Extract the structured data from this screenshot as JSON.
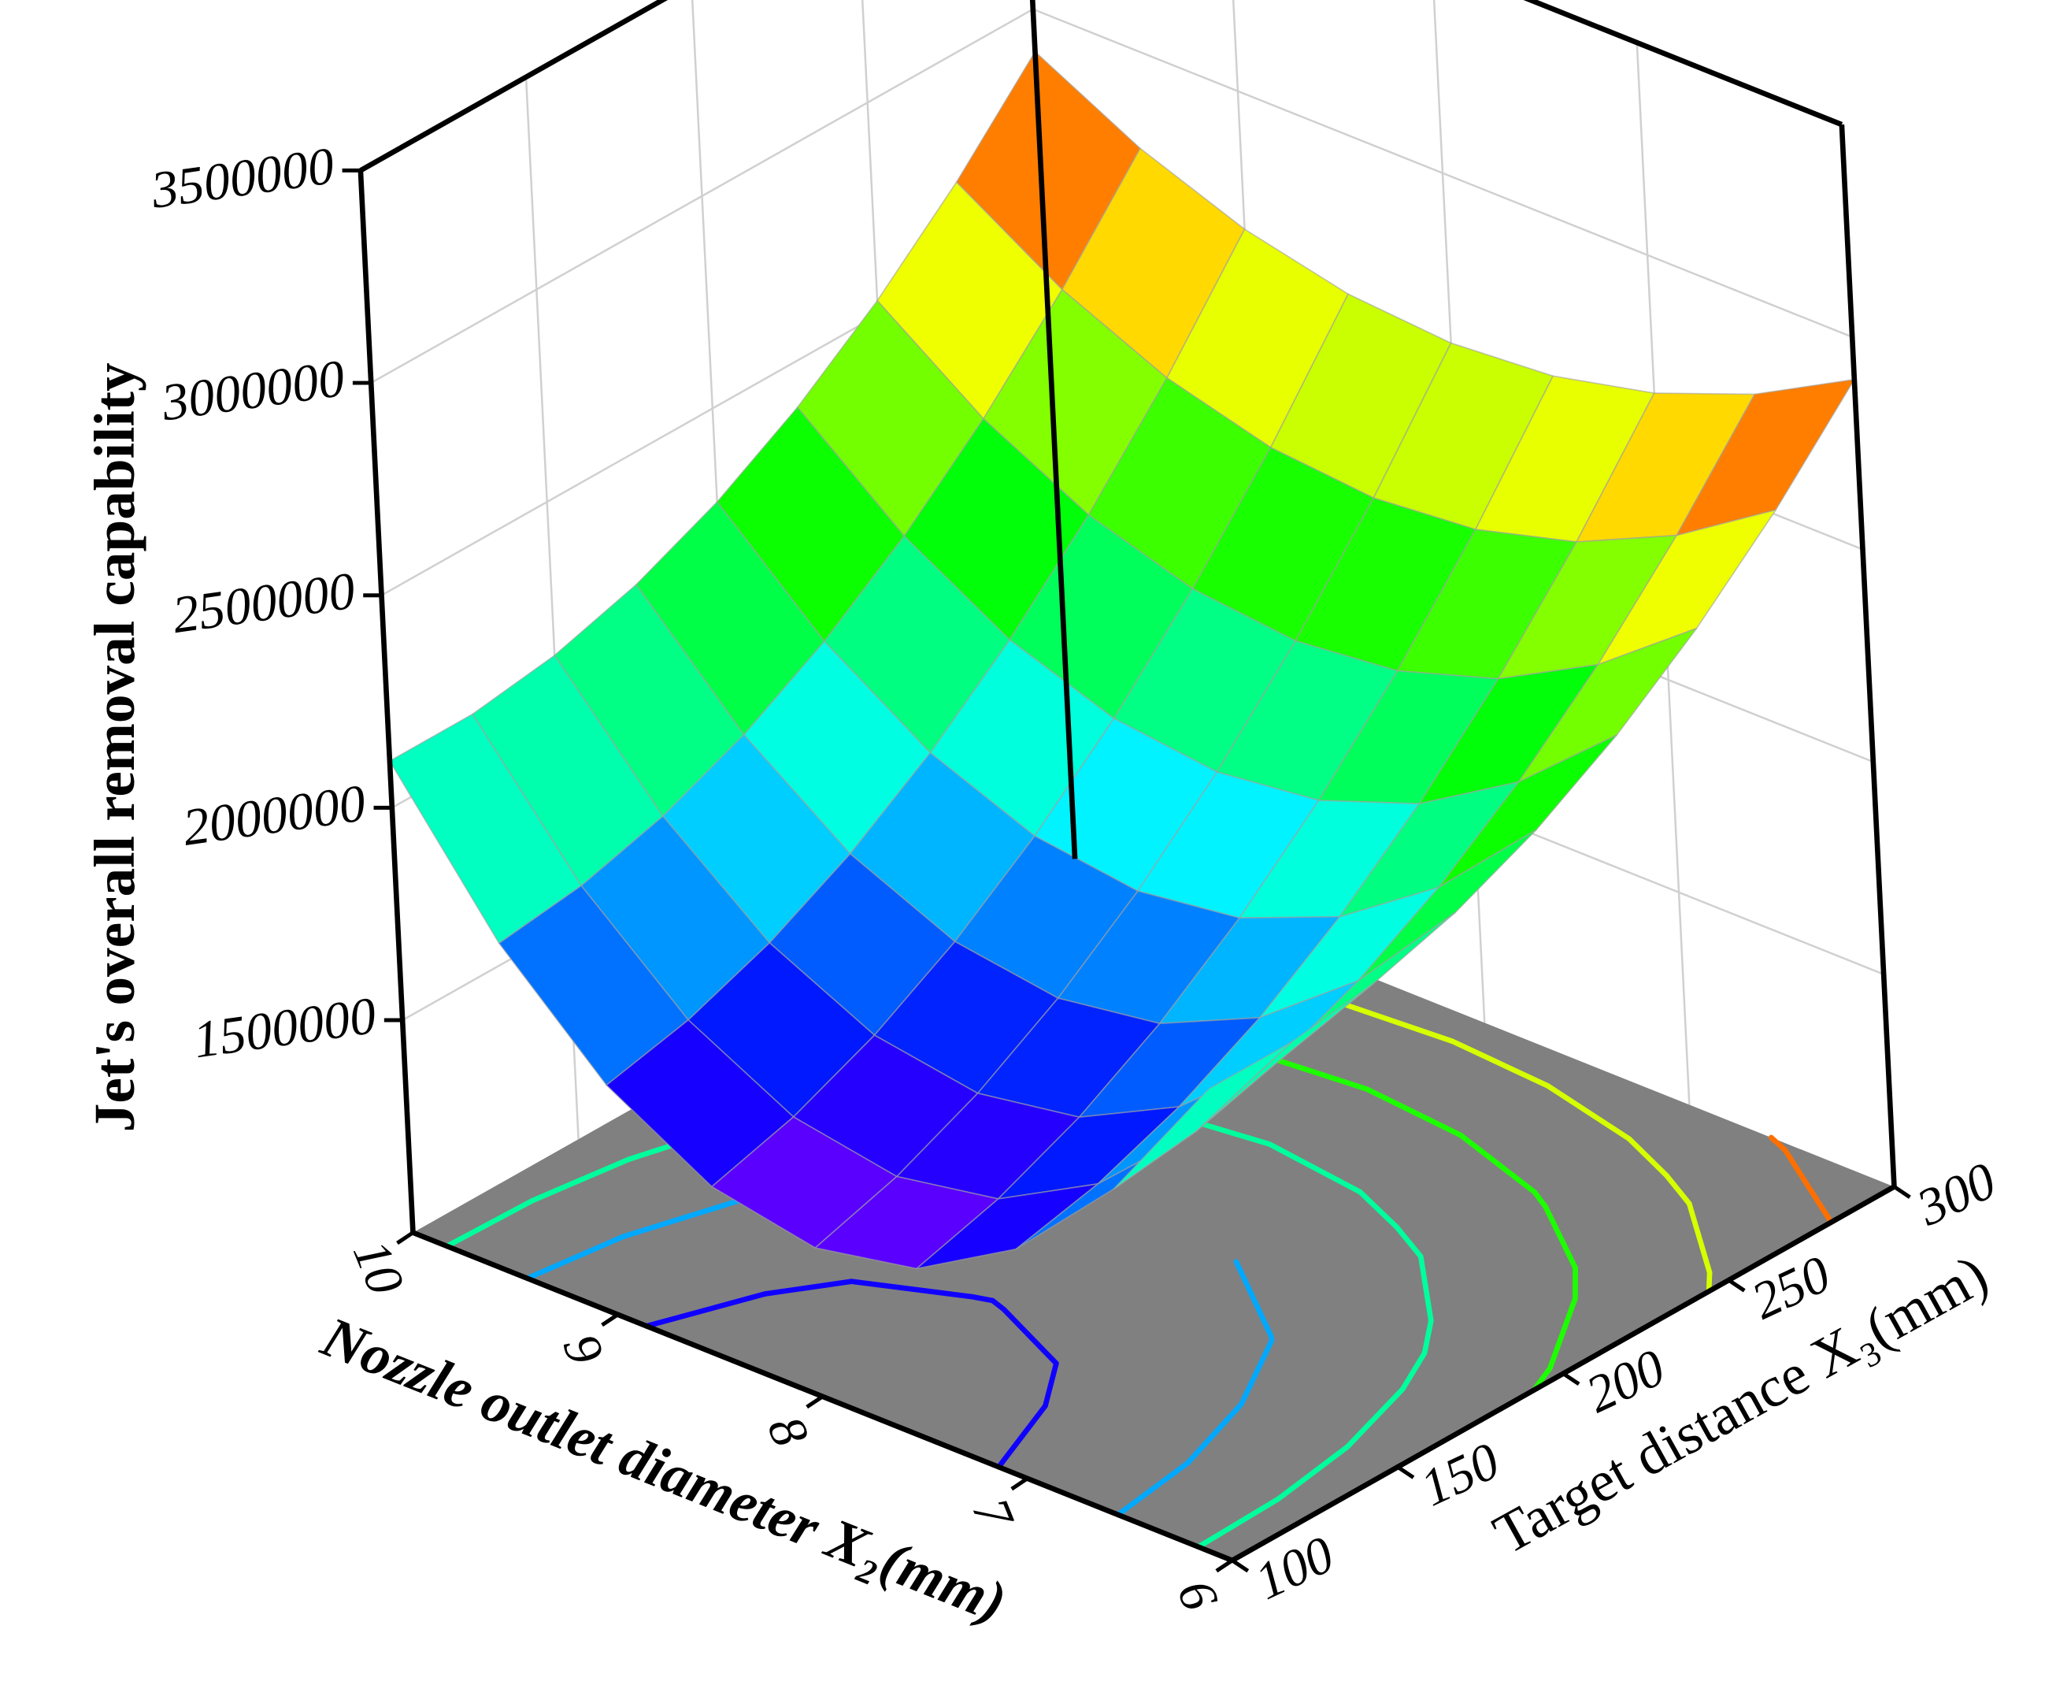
{
  "chart_data": {
    "type": "surface3d",
    "zlabel": "Jet's overall removal capability",
    "xlabel": "Nozzle outlet diameter X₂(mm)",
    "ylabel": "Target distance X₃(mm)",
    "x": [
      6,
      6.5,
      7,
      7.5,
      8,
      8.5,
      9,
      9.5,
      10
    ],
    "y": [
      100,
      125,
      150,
      175,
      200,
      225,
      250,
      275,
      300
    ],
    "z": [
      [
        2110000,
        1777500,
        1540000,
        1397500,
        1350000,
        1397500,
        1540000,
        1777500,
        2110000
      ],
      [
        2110300,
        1803000,
        1583400,
        1451700,
        1407800,
        1451700,
        1583400,
        1803000,
        2110300
      ],
      [
        2138800,
        1856600,
        1655000,
        1534100,
        1493800,
        1534100,
        1655000,
        1856600,
        2138800
      ],
      [
        2195300,
        1938300,
        1754700,
        1644500,
        1607800,
        1644500,
        1754700,
        1938300,
        2195300
      ],
      [
        2280000,
        2048100,
        1882500,
        1783100,
        1750000,
        1783100,
        1882500,
        2048100,
        2280000
      ],
      [
        2392800,
        2186100,
        2038400,
        1949800,
        1920300,
        1949800,
        2038400,
        2186100,
        2392800
      ],
      [
        2533800,
        2352200,
        2222500,
        2144700,
        2118800,
        2144700,
        2222500,
        2352200,
        2533800
      ],
      [
        2702800,
        2546400,
        2434700,
        2367600,
        2345300,
        2367600,
        2434700,
        2546400,
        2702800
      ],
      [
        2900000,
        2768800,
        2675000,
        2618800,
        2600000,
        2618800,
        2675000,
        2768800,
        2900000
      ]
    ],
    "xlim": [
      6,
      10
    ],
    "xticks": [
      6,
      7,
      8,
      9,
      10
    ],
    "ylim": [
      100,
      300
    ],
    "yticks": [
      100,
      150,
      200,
      250,
      300
    ],
    "zlim": [
      1000000,
      3500000
    ],
    "zticks": [
      1500000,
      2000000,
      2500000,
      3000000,
      3500000
    ],
    "colormap": "rainbow",
    "floor_color": "#808080",
    "contour_levels": [
      1500000,
      1750000,
      2000000,
      2250000,
      2500000,
      2750000
    ],
    "grid": true
  }
}
